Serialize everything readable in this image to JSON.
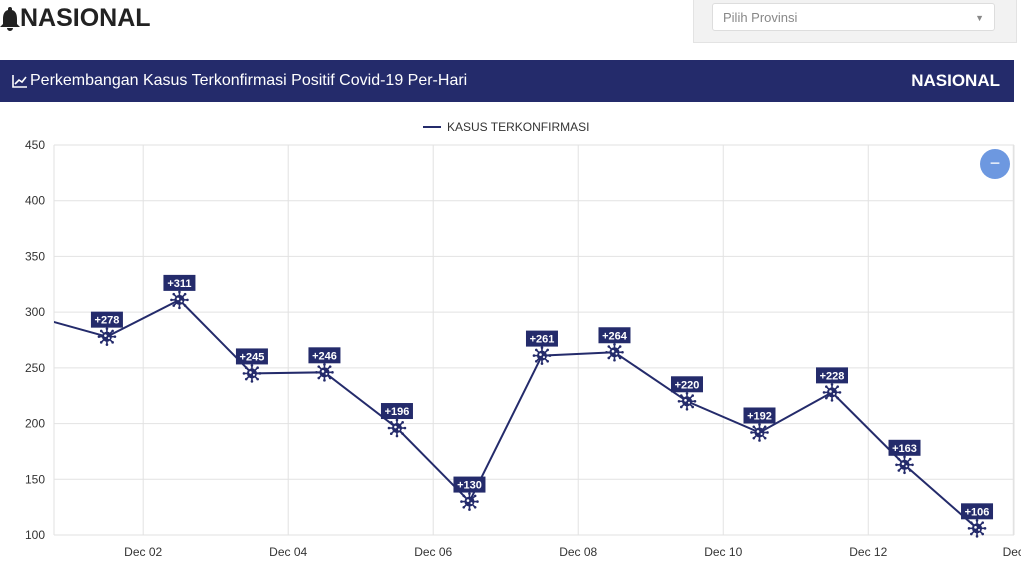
{
  "header": {
    "title": "NASIONAL",
    "bell_icon": "bell-icon"
  },
  "province_select": {
    "placeholder": "Pilih Provinsi"
  },
  "card": {
    "title": "Perkembangan Kasus Terkonfirmasi Positif Covid-19 Per-Hari",
    "region": "NASIONAL"
  },
  "colors": {
    "primary": "#242b6b",
    "button": "#6d98e0"
  },
  "chart_data": {
    "type": "line",
    "legend": [
      "KASUS TERKONFIRMASI"
    ],
    "legend_position": "top",
    "ylim": [
      100,
      450
    ],
    "yticks": [
      100,
      150,
      200,
      250,
      300,
      350,
      400,
      450
    ],
    "xlim_day_of_december": [
      0.77,
      14.01
    ],
    "xticks": [
      {
        "day": 2,
        "label": "Dec 02"
      },
      {
        "day": 4,
        "label": "Dec 04"
      },
      {
        "day": 6,
        "label": "Dec 06"
      },
      {
        "day": 8,
        "label": "Dec 08"
      },
      {
        "day": 10,
        "label": "Dec 10"
      },
      {
        "day": 12,
        "label": "Dec 12"
      },
      {
        "day": 14,
        "label": "Dec"
      }
    ],
    "series": [
      {
        "name": "KASUS TERKONFIRMASI",
        "color": "#242b6b",
        "points": [
          {
            "day": 0.5,
            "value": 296
          },
          {
            "day": 1.5,
            "value": 278,
            "label": "+278"
          },
          {
            "day": 2.5,
            "value": 311,
            "label": "+311"
          },
          {
            "day": 3.5,
            "value": 245,
            "label": "+245"
          },
          {
            "day": 4.5,
            "value": 246,
            "label": "+246"
          },
          {
            "day": 5.5,
            "value": 196,
            "label": "+196"
          },
          {
            "day": 6.5,
            "value": 130,
            "label": "+130"
          },
          {
            "day": 7.5,
            "value": 261,
            "label": "+261"
          },
          {
            "day": 8.5,
            "value": 264,
            "label": "+264"
          },
          {
            "day": 9.5,
            "value": 220,
            "label": "+220"
          },
          {
            "day": 10.5,
            "value": 192,
            "label": "+192"
          },
          {
            "day": 11.5,
            "value": 228,
            "label": "+228"
          },
          {
            "day": 12.5,
            "value": 163,
            "label": "+163"
          },
          {
            "day": 13.5,
            "value": 106,
            "label": "+106"
          }
        ]
      }
    ],
    "grid": true
  },
  "zoom_button": {
    "label": "−"
  }
}
